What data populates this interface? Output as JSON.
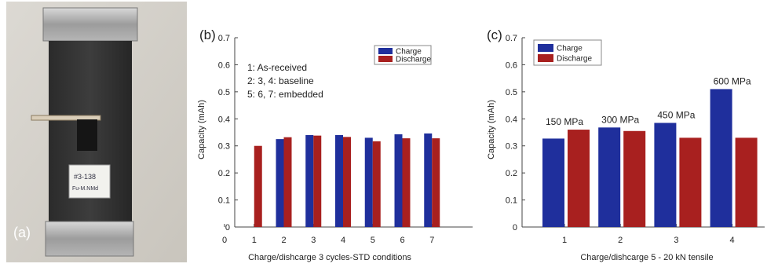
{
  "panels": {
    "a": {
      "label": "(a)",
      "tag_line1": "#3-138",
      "tag_line2": "Fu-M.NMd"
    },
    "b": {
      "label": "(b)"
    },
    "c": {
      "label": "(c)"
    }
  },
  "colors": {
    "charge": "#1f2f9c",
    "discharge": "#a8201f"
  },
  "chart_data": [
    {
      "type": "bar",
      "panel": "(b)",
      "ylabel": "Capacity (mAh)",
      "xlabel": "Charge/dishcarge 3 cycles-STD conditions",
      "categories": [
        "1",
        "2",
        "3",
        "4",
        "5",
        "6",
        "7"
      ],
      "x_ticks": [
        "0",
        "1",
        "2",
        "3",
        "4",
        "5",
        "6",
        "7"
      ],
      "y_ticks": [
        "0",
        "0.1",
        "0.2",
        "0.3",
        "0.4",
        "0.5",
        "0.6",
        "0.7"
      ],
      "ylim": [
        0,
        0.7
      ],
      "legend_position": "top-right",
      "series": [
        {
          "name": "Charge",
          "values": [
            null,
            0.325,
            0.34,
            0.34,
            0.33,
            0.343,
            0.346
          ]
        },
        {
          "name": "Discharge",
          "values": [
            0.3,
            0.332,
            0.338,
            0.333,
            0.317,
            0.328,
            0.328
          ]
        }
      ],
      "notes": [
        "1: As-received",
        "2: 3, 4: baseline",
        "5: 6, 7: embedded"
      ]
    },
    {
      "type": "bar",
      "panel": "(c)",
      "ylabel": "Capacity (mAh)",
      "xlabel": "Charge/dishcarge 5 - 20 kN tensile",
      "categories": [
        "1",
        "2",
        "3",
        "4"
      ],
      "y_ticks": [
        "0",
        "0.1",
        "0.2",
        "0.3",
        "0.4",
        "0.5",
        "0.6",
        "0.7"
      ],
      "ylim": [
        0,
        0.7
      ],
      "legend_position": "top-left",
      "series": [
        {
          "name": "Charge",
          "values": [
            0.327,
            0.368,
            0.385,
            0.51
          ]
        },
        {
          "name": "Discharge",
          "values": [
            0.36,
            0.355,
            0.33,
            0.33
          ]
        }
      ],
      "annotations": [
        "150 MPa",
        "300 MPa",
        "450 MPa",
        "600 MPa"
      ]
    }
  ]
}
